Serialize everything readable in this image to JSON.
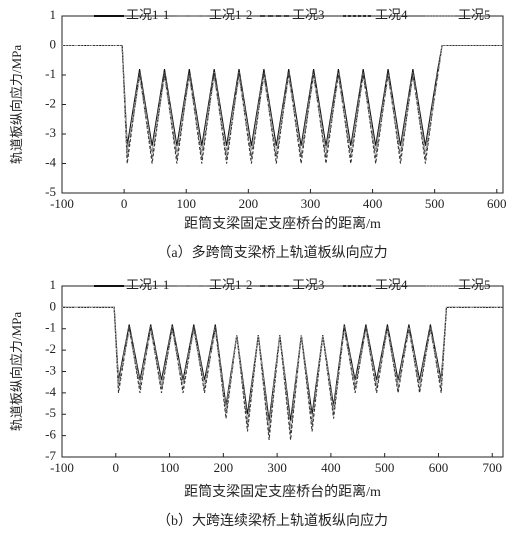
{
  "chart_data": [
    {
      "type": "line",
      "ylabel": "轨道板纵向应力/MPa",
      "xlabel": "距筒支梁固定支座桥台的距离/m",
      "caption": "（a）多跨筒支梁桥上轨道板纵向应力",
      "xlim": [
        -100,
        610
      ],
      "xticks": [
        -100,
        0,
        100,
        200,
        300,
        400,
        500,
        600
      ],
      "ylim": [
        -5,
        1
      ],
      "yticks": [
        -5,
        -4,
        -3,
        -2,
        -1,
        0,
        1
      ],
      "legend": "top",
      "x": [
        -100,
        -3,
        5,
        25,
        45,
        65,
        85,
        105,
        125,
        145,
        165,
        185,
        205,
        225,
        245,
        265,
        285,
        305,
        325,
        345,
        365,
        385,
        405,
        425,
        445,
        465,
        485,
        505,
        512,
        610
      ],
      "series": [
        {
          "name": "工况1-1",
          "color": "#111111",
          "dash": "solid",
          "values": [
            0,
            0,
            -3.4,
            -0.8,
            -3.4,
            -0.8,
            -3.4,
            -0.8,
            -3.4,
            -0.8,
            -3.4,
            -0.8,
            -3.4,
            -0.8,
            -3.4,
            -0.8,
            -3.4,
            -0.8,
            -3.4,
            -0.8,
            -3.4,
            -0.8,
            -3.4,
            -0.8,
            -3.4,
            -0.8,
            -3.4,
            -0.8,
            0,
            0
          ]
        },
        {
          "name": "工况1-2",
          "color": "#999999",
          "dash": "long-dash",
          "values": [
            0,
            0,
            -3.6,
            -0.9,
            -3.6,
            -0.9,
            -3.6,
            -0.9,
            -3.6,
            -0.9,
            -3.6,
            -0.9,
            -3.6,
            -0.9,
            -3.6,
            -0.9,
            -3.6,
            -0.9,
            -3.6,
            -0.9,
            -3.6,
            -0.9,
            -3.6,
            -0.9,
            -3.6,
            -0.9,
            -3.6,
            -0.9,
            0,
            0
          ]
        },
        {
          "name": "工况3",
          "color": "#444444",
          "dash": "dash",
          "values": [
            0,
            0,
            -3.8,
            -1.0,
            -3.8,
            -1.0,
            -3.8,
            -1.0,
            -3.8,
            -1.0,
            -3.8,
            -1.0,
            -3.8,
            -1.0,
            -3.8,
            -1.0,
            -3.8,
            -1.0,
            -3.8,
            -1.0,
            -3.8,
            -1.0,
            -3.8,
            -1.0,
            -3.8,
            -1.0,
            -3.8,
            -1.0,
            0,
            0
          ]
        },
        {
          "name": "工况4",
          "color": "#333333",
          "dash": "short-dash",
          "values": [
            0,
            0,
            -4.0,
            -0.9,
            -4.0,
            -0.9,
            -4.0,
            -0.9,
            -4.0,
            -0.9,
            -4.0,
            -0.9,
            -4.0,
            -0.9,
            -4.0,
            -0.9,
            -4.0,
            -0.9,
            -4.0,
            -0.9,
            -4.0,
            -0.9,
            -4.0,
            -0.9,
            -4.0,
            -0.9,
            -4.0,
            -0.9,
            0,
            0
          ]
        },
        {
          "name": "工况5",
          "color": "#aaaaaa",
          "dash": "dot",
          "values": [
            0,
            0,
            -3.7,
            -1.1,
            -3.7,
            -1.1,
            -3.7,
            -1.1,
            -3.7,
            -1.1,
            -3.7,
            -1.1,
            -3.7,
            -1.1,
            -3.7,
            -1.1,
            -3.7,
            -1.1,
            -3.7,
            -1.1,
            -3.7,
            -1.1,
            -3.7,
            -1.1,
            -3.7,
            -1.1,
            -3.7,
            -1.1,
            0,
            0
          ]
        }
      ]
    },
    {
      "type": "line",
      "ylabel": "轨道板纵向应力/MPa",
      "xlabel": "距筒支梁固定支座桥台的距离/m",
      "caption": "（b）大跨连续梁桥上轨道板纵向应力",
      "xlim": [
        -100,
        720
      ],
      "xticks": [
        -100,
        0,
        100,
        200,
        300,
        400,
        500,
        600,
        700
      ],
      "ylim": [
        -7,
        1
      ],
      "yticks": [
        -7,
        -6,
        -5,
        -4,
        -3,
        -2,
        -1,
        0,
        1
      ],
      "legend": "top",
      "x": [
        -100,
        -3,
        5,
        25,
        45,
        65,
        85,
        105,
        125,
        145,
        165,
        185,
        205,
        225,
        245,
        265,
        285,
        305,
        325,
        345,
        365,
        385,
        405,
        425,
        445,
        465,
        485,
        505,
        525,
        545,
        565,
        585,
        605,
        615,
        720
      ],
      "series": [
        {
          "name": "工况1-1",
          "color": "#111111",
          "dash": "solid",
          "values": [
            0,
            0,
            -3.4,
            -0.8,
            -3.4,
            -0.8,
            -3.4,
            -0.8,
            -3.4,
            -0.8,
            -3.4,
            -0.8,
            -4.6,
            -1.3,
            -5.0,
            -1.3,
            -5.3,
            -1.3,
            -5.3,
            -1.3,
            -5.0,
            -1.3,
            -4.6,
            -0.8,
            -3.4,
            -0.8,
            -3.4,
            -0.8,
            -3.4,
            -0.8,
            -3.4,
            -0.8,
            -3.4,
            0,
            0
          ]
        },
        {
          "name": "工况1-2",
          "color": "#999999",
          "dash": "long-dash",
          "values": [
            0,
            0,
            -3.6,
            -0.9,
            -3.6,
            -0.9,
            -3.6,
            -0.9,
            -3.6,
            -0.9,
            -3.6,
            -0.9,
            -4.8,
            -1.3,
            -5.3,
            -1.3,
            -5.6,
            -1.3,
            -5.6,
            -1.3,
            -5.3,
            -1.3,
            -4.8,
            -0.9,
            -3.6,
            -0.9,
            -3.6,
            -0.9,
            -3.6,
            -0.9,
            -3.6,
            -0.9,
            -3.6,
            0,
            0
          ]
        },
        {
          "name": "工况3",
          "color": "#444444",
          "dash": "dash",
          "values": [
            0,
            0,
            -3.8,
            -1.0,
            -3.8,
            -1.0,
            -3.8,
            -1.0,
            -3.8,
            -1.0,
            -3.8,
            -1.0,
            -5.0,
            -1.3,
            -5.5,
            -1.3,
            -5.9,
            -1.3,
            -5.9,
            -1.3,
            -5.5,
            -1.3,
            -5.0,
            -1.0,
            -3.8,
            -1.0,
            -3.8,
            -1.0,
            -3.8,
            -1.0,
            -3.8,
            -1.0,
            -3.8,
            0,
            0
          ]
        },
        {
          "name": "工况4",
          "color": "#333333",
          "dash": "short-dash",
          "values": [
            0,
            0,
            -4.0,
            -0.9,
            -4.0,
            -0.9,
            -4.0,
            -0.9,
            -4.0,
            -0.9,
            -4.0,
            -0.9,
            -5.2,
            -1.3,
            -5.8,
            -1.3,
            -6.2,
            -1.3,
            -6.2,
            -1.3,
            -5.8,
            -1.3,
            -5.2,
            -0.9,
            -4.0,
            -0.9,
            -4.0,
            -0.9,
            -4.0,
            -0.9,
            -4.0,
            -0.9,
            -4.0,
            0,
            0
          ]
        },
        {
          "name": "工况5",
          "color": "#aaaaaa",
          "dash": "dot",
          "values": [
            0,
            0,
            -3.7,
            -1.1,
            -3.7,
            -1.1,
            -3.7,
            -1.1,
            -3.7,
            -1.1,
            -3.7,
            -1.1,
            -4.9,
            -1.3,
            -5.4,
            -1.3,
            -5.7,
            -1.3,
            -5.7,
            -1.3,
            -5.4,
            -1.3,
            -4.9,
            -1.1,
            -3.7,
            -1.1,
            -3.7,
            -1.1,
            -3.7,
            -1.1,
            -3.7,
            -1.1,
            -3.7,
            0,
            0
          ]
        }
      ]
    }
  ]
}
